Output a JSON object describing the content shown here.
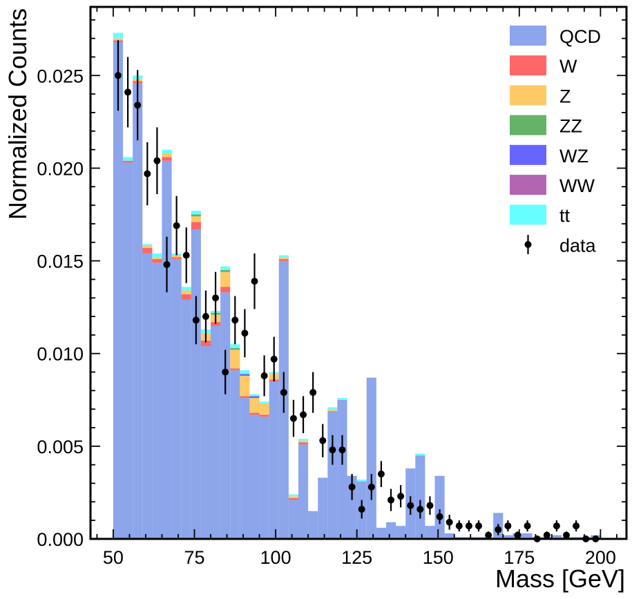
{
  "chart_data": {
    "type": "bar",
    "stacked": true,
    "xlabel": "Mass [GeV]",
    "ylabel": "Normalized Counts",
    "xlim": [
      43,
      208
    ],
    "ylim": [
      0,
      0.0287
    ],
    "xticks": [
      50,
      75,
      100,
      125,
      150,
      175,
      200
    ],
    "xtick_labels": [
      "50",
      "75",
      "100",
      "125",
      "150",
      "175",
      "200"
    ],
    "yticks": [
      0,
      0.005,
      0.01,
      0.015,
      0.02,
      0.025
    ],
    "ytick_labels": [
      "0.000",
      "0.005",
      "0.010",
      "0.015",
      "0.020",
      "0.025"
    ],
    "grid": false,
    "legend_position": "top-right",
    "bin_edges": [
      50,
      53,
      56,
      59,
      62,
      65,
      68,
      71,
      74,
      77,
      80,
      83,
      86,
      89,
      92,
      95,
      98,
      101,
      104,
      107,
      110,
      113,
      116,
      119,
      122,
      125,
      128,
      131,
      134,
      137,
      140,
      143,
      146,
      149,
      152,
      155,
      158,
      161,
      164,
      167,
      170,
      173,
      176,
      179,
      182,
      185,
      188,
      191,
      194,
      197,
      200
    ],
    "series": [
      {
        "name": "QCD",
        "color": "#8ca5eb",
        "values": [
          0.0268,
          0.0203,
          0.0246,
          0.0154,
          0.0149,
          0.0204,
          0.0151,
          0.0129,
          0.0167,
          0.0104,
          0.0115,
          0.0133,
          0.0091,
          0.0076,
          0.0067,
          0.0066,
          0.0085,
          0.015,
          0.0021,
          0.0051,
          0.0015,
          0.0033,
          0.0069,
          0.0075,
          0.0034,
          0.0031,
          0.0087,
          0.0006,
          0.0009,
          0.0007,
          0.0038,
          0.0045,
          0.0007,
          0.0034,
          0.0003,
          0.0001,
          0.0001,
          0.0001,
          0.0001,
          0.0014,
          0.0002,
          0.0003,
          0.0003,
          0.0001,
          0.0001,
          0.0002,
          0.0001,
          0.0001,
          0.0001,
          0.0002
        ]
      },
      {
        "name": "W",
        "color": "#ff6666",
        "values": [
          0.0001,
          0.0001,
          0.0001,
          0.0003,
          0.0002,
          0.0002,
          0.0001,
          0.0003,
          0.0004,
          0.0003,
          0.0002,
          0.0003,
          0.0001,
          0.0001,
          0.0001,
          0.0001,
          0.0001,
          0.0001,
          0.0001,
          0.0001,
          0,
          0,
          0,
          0,
          0,
          0,
          0,
          0,
          0,
          0,
          0,
          0,
          0,
          0,
          0,
          0,
          0,
          0,
          0,
          0,
          0,
          0,
          0,
          0,
          0,
          0,
          0,
          0,
          0,
          0
        ]
      },
      {
        "name": "Z",
        "color": "#ffc966",
        "values": [
          0.0001,
          0,
          0.0001,
          0.0001,
          0.0001,
          0.0002,
          0.0001,
          0.0002,
          0.0003,
          0.0004,
          0.0004,
          0.0008,
          0.001,
          0.0011,
          0.0008,
          0.0006,
          0.0003,
          0.0001,
          0.0001,
          0.0001,
          0,
          0,
          0.0001,
          0,
          0,
          0,
          0,
          0,
          0,
          0,
          0,
          0,
          0,
          0,
          0,
          0,
          0,
          0,
          0,
          0,
          0,
          0,
          0,
          0,
          0,
          0,
          0,
          0,
          0,
          0
        ]
      },
      {
        "name": "ZZ",
        "color": "#66b266",
        "values": [
          0,
          0,
          0,
          0,
          0,
          0,
          0,
          0,
          0.0001,
          0,
          0.0001,
          0.0001,
          0.0001,
          0,
          0,
          0,
          0,
          0,
          0,
          0,
          0,
          0,
          0,
          0,
          0,
          0,
          0,
          0,
          0,
          0,
          0,
          0,
          0,
          0,
          0,
          0,
          0,
          0,
          0,
          0,
          0,
          0,
          0,
          0,
          0,
          0,
          0,
          0,
          0,
          0
        ]
      },
      {
        "name": "WZ",
        "color": "#6666ff",
        "values": [
          0,
          0,
          0,
          0,
          0,
          0,
          0,
          0,
          0,
          0,
          0,
          0,
          0,
          0.0001,
          0.0001,
          0,
          0,
          0,
          0,
          0,
          0,
          0,
          0,
          0,
          0,
          0,
          0,
          0,
          0,
          0,
          0,
          0,
          0,
          0,
          0,
          0,
          0,
          0,
          0,
          0,
          0,
          0,
          0,
          0,
          0,
          0,
          0,
          0,
          0,
          0
        ]
      },
      {
        "name": "WW",
        "color": "#b266b2",
        "values": [
          0,
          0,
          0,
          0,
          0,
          0,
          0,
          0,
          0,
          0,
          0,
          0,
          0,
          0,
          0,
          0,
          0,
          0,
          0,
          0,
          0,
          0,
          0,
          0,
          0,
          0,
          0,
          0,
          0,
          0,
          0,
          0,
          0,
          0,
          0,
          0,
          0,
          0,
          0,
          0,
          0,
          0,
          0,
          0,
          0,
          0,
          0,
          0,
          0,
          0
        ]
      },
      {
        "name": "tt",
        "color": "#66ffff",
        "values": [
          0.0003,
          0.0002,
          0.0002,
          0.0001,
          0.0002,
          0.0002,
          0.0001,
          0.0002,
          0.0002,
          0.0002,
          0.0001,
          0.0002,
          0.0002,
          0.0002,
          0.0001,
          0.0001,
          0.0001,
          0.0001,
          0.0001,
          0.0001,
          0,
          0,
          0.0001,
          0.0001,
          0,
          0.0001,
          0,
          0,
          0,
          0,
          0,
          0.0001,
          0,
          0,
          0,
          0,
          0,
          0,
          0,
          0,
          0,
          0,
          0,
          0,
          0,
          0,
          0,
          0,
          0,
          0
        ]
      }
    ],
    "data_points": {
      "name": "data",
      "color": "#000000",
      "x": [
        51.5,
        54.5,
        57.5,
        60.5,
        63.5,
        66.5,
        69.5,
        72.5,
        75.5,
        78.5,
        81.5,
        84.5,
        87.5,
        90.5,
        93.5,
        96.5,
        99.5,
        102.5,
        105.5,
        108.5,
        111.5,
        114.5,
        117.5,
        120.5,
        123.5,
        126.5,
        129.5,
        132.5,
        135.5,
        138.5,
        141.5,
        144.5,
        147.5,
        150.5,
        153.5,
        156.5,
        159.5,
        162.5,
        165.5,
        168.5,
        171.5,
        174.5,
        177.5,
        180.5,
        183.5,
        186.5,
        189.5,
        192.5,
        195.5,
        198.5
      ],
      "y": [
        0.025,
        0.0241,
        0.0234,
        0.0197,
        0.0204,
        0.0148,
        0.0169,
        0.0153,
        0.0118,
        0.012,
        0.013,
        0.009,
        0.0118,
        0.0111,
        0.0139,
        0.0088,
        0.0097,
        0.0079,
        0.0065,
        0.0067,
        0.0079,
        0.0053,
        0.0048,
        0.0048,
        0.0028,
        0.0016,
        0.0028,
        0.0035,
        0.0021,
        0.0023,
        0.0018,
        0.0016,
        0.0018,
        0.0012,
        0.0009,
        0.0007,
        0.0007,
        0.0007,
        0.0002,
        0.0005,
        0.0007,
        0.0002,
        0.0007,
        0,
        0.0002,
        0.0007,
        0.0002,
        0.0007,
        0,
        0
      ],
      "yerr": [
        0.0019,
        0.0019,
        0.0019,
        0.0017,
        0.0018,
        0.0015,
        0.0016,
        0.0015,
        0.0013,
        0.0014,
        0.0014,
        0.0012,
        0.0013,
        0.0013,
        0.0015,
        0.0011,
        0.0012,
        0.0011,
        0.001,
        0.001,
        0.0011,
        0.0009,
        0.0008,
        0.0008,
        0.0007,
        0.0005,
        0.0007,
        0.0007,
        0.0006,
        0.0006,
        0.0005,
        0.0005,
        0.0005,
        0.0004,
        0.0004,
        0.0003,
        0.0003,
        0.0003,
        0.0002,
        0.0003,
        0.0003,
        0.0002,
        0.0003,
        0,
        0.0002,
        0.0003,
        0.0002,
        0.0003,
        0,
        0
      ]
    }
  }
}
